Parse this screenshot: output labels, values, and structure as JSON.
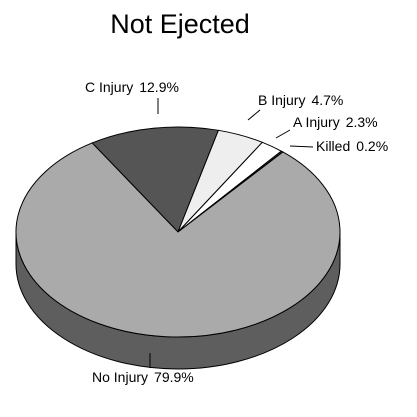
{
  "chart_data": {
    "type": "pie",
    "title": "Not Ejected",
    "categories": [
      "C Injury",
      "B Injury",
      "A Injury",
      "Killed",
      "No Injury"
    ],
    "values": [
      12.9,
      4.7,
      2.3,
      0.2,
      79.9
    ],
    "value_labels": [
      "12.9%",
      "4.7%",
      "2.3%",
      "0.2%",
      "79.9%"
    ],
    "colors": [
      "#555555",
      "#eeeeee",
      "#ffffff",
      "#333333",
      "#aaaaaa"
    ]
  }
}
